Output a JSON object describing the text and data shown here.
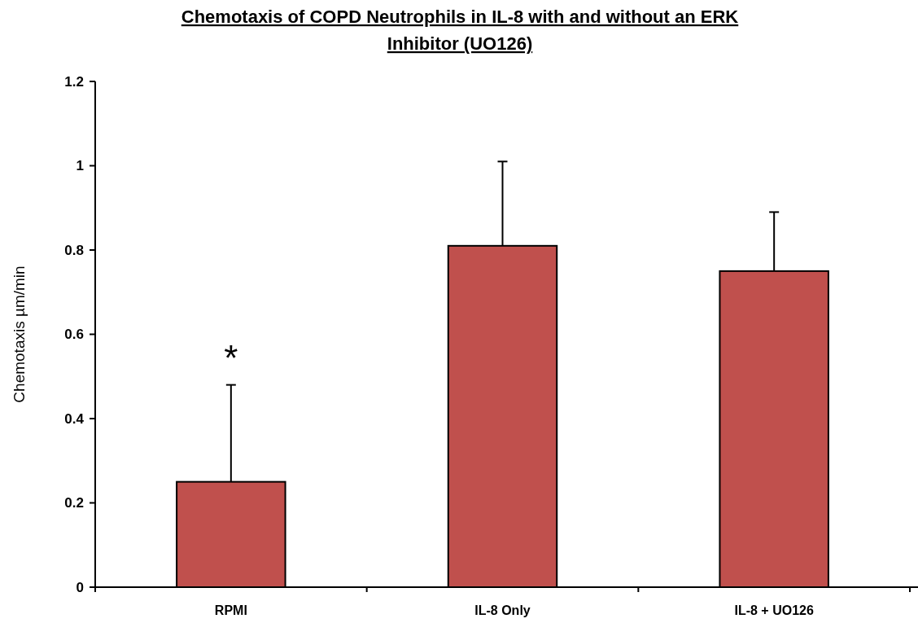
{
  "chart_data": {
    "type": "bar",
    "title": "Chemotaxis of COPD Neutrophils in IL-8 with and without an ERK Inhibitor (UO126)",
    "ylabel": "Chemotaxis µm/min",
    "categories": [
      "RPMI",
      "IL-8 Only",
      "IL-8 + UO126"
    ],
    "values": [
      0.25,
      0.81,
      0.75
    ],
    "errors": [
      [
        0.25,
        0.48
      ],
      [
        0.81,
        1.01
      ],
      [
        0.75,
        0.89
      ]
    ],
    "color": "#c0504d",
    "ylim": [
      0,
      1.2
    ],
    "yticks": [
      0,
      0.2,
      0.4,
      0.6,
      0.8,
      1,
      1.2
    ],
    "grid": false,
    "annotations": [
      "*"
    ]
  }
}
